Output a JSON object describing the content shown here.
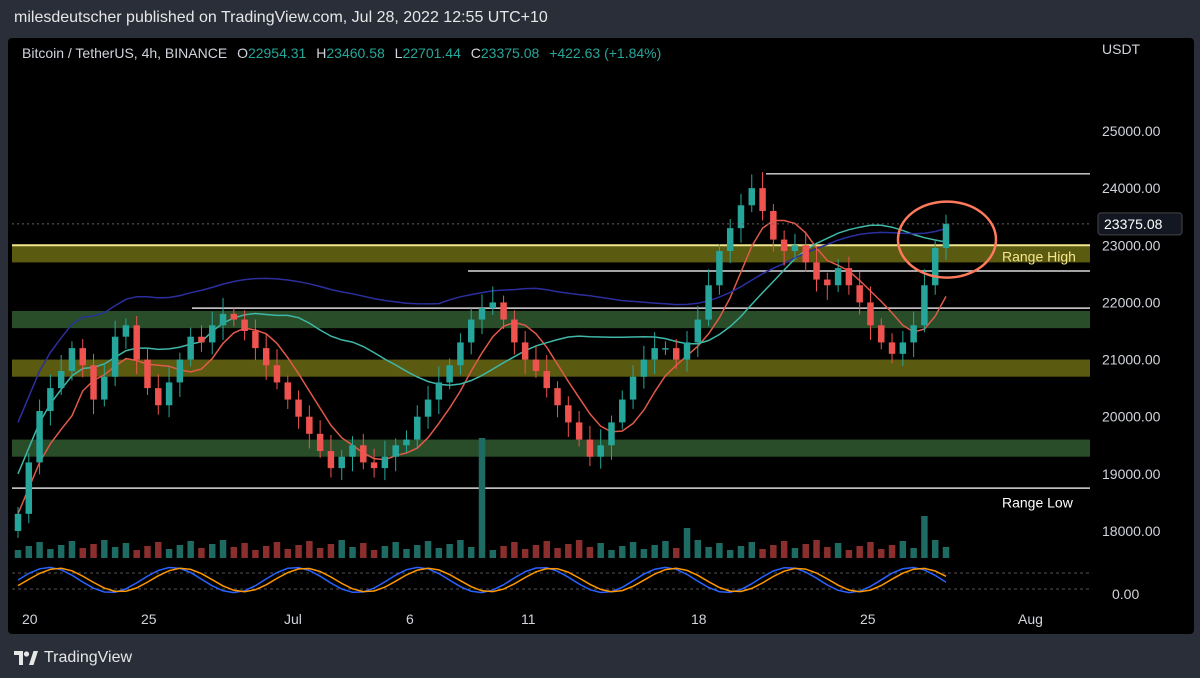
{
  "publisher_line": "milesdeutscher published on TradingView.com, Jul 28, 2022 12:55 UTC+10",
  "footer_brand": "TradingView",
  "legend": {
    "symbol": "Bitcoin / TetherUS, 4h, BINANCE",
    "open_label": "O",
    "open": "22954.31",
    "high_label": "H",
    "high": "23460.58",
    "low_label": "L",
    "low": "22701.44",
    "close_label": "C",
    "close": "23375.08",
    "change": "+422.63 (+1.84%)"
  },
  "colors": {
    "background": "#000000",
    "frame": "#2a2e39",
    "up": "#26a69a",
    "down": "#ef5350",
    "zone_yellow": "#6b6a14",
    "zone_green": "#2f5a2f",
    "circle": "#ff7a5c",
    "price_badge": "#131722"
  },
  "chart_data": {
    "type": "candlestick",
    "ylabel": "USDT",
    "y_ticks": [
      "25000.00",
      "24000.00",
      "23000.00",
      "22000.00",
      "21000.00",
      "20000.00",
      "19000.00",
      "18000.00"
    ],
    "x_ticks": [
      "20",
      "25",
      "Jul",
      "6",
      "11",
      "18",
      "25",
      "Aug"
    ],
    "oscillator_tick": "0.00",
    "last_price_label": "23375.08",
    "closes": [
      18300,
      19200,
      20100,
      20500,
      20800,
      21200,
      20900,
      20300,
      20700,
      21400,
      21600,
      21000,
      20500,
      20200,
      20600,
      21000,
      21400,
      21300,
      21600,
      21800,
      21700,
      21500,
      21200,
      20900,
      20600,
      20300,
      20000,
      19700,
      19400,
      19100,
      19300,
      19500,
      19200,
      19100,
      19300,
      19500,
      19600,
      20000,
      20300,
      20600,
      20900,
      21300,
      21700,
      21900,
      22000,
      21700,
      21300,
      21000,
      20800,
      20500,
      20200,
      19900,
      19600,
      19300,
      19500,
      19900,
      20300,
      20700,
      21000,
      21200,
      21200,
      21000,
      21300,
      21700,
      22300,
      22900,
      23300,
      23700,
      24000,
      23600,
      23100,
      22900,
      23000,
      22700,
      22400,
      22300,
      22600,
      22300,
      22000,
      21600,
      21300,
      21100,
      21300,
      21600,
      22300,
      22954,
      23375
    ],
    "zones": [
      {
        "low": 22700,
        "high": 23000,
        "kind": "yellow"
      },
      {
        "low": 21550,
        "high": 21850,
        "kind": "green"
      },
      {
        "low": 20700,
        "high": 21000,
        "kind": "yellow"
      },
      {
        "low": 19300,
        "high": 19600,
        "kind": "green"
      }
    ],
    "levels": [
      24250,
      22550,
      21900,
      18750
    ],
    "annotations": [
      {
        "text": "Range High",
        "price": 22800
      },
      {
        "text": "Range Low",
        "price": 18500
      }
    ]
  }
}
